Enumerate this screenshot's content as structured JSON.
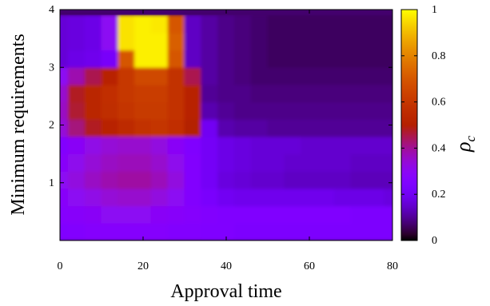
{
  "chart_data": {
    "type": "heatmap",
    "xlabel": "Approval time",
    "ylabel": "Minimum requirements",
    "colorbar_label": "ρ",
    "colorbar_label_sub": "c",
    "xlim": [
      0,
      80
    ],
    "ylim": [
      0,
      4
    ],
    "x_ticks": [
      0,
      20,
      40,
      60,
      80
    ],
    "x_tick_labels": [
      "0",
      "20",
      "40",
      "60",
      "80"
    ],
    "y_ticks": [
      1,
      2,
      3,
      4
    ],
    "y_tick_labels": [
      "1",
      "2",
      "3",
      "4"
    ],
    "color_range": [
      0,
      1
    ],
    "colorbar_ticks": [
      0,
      0.2,
      0.4,
      0.6,
      0.8,
      1
    ],
    "colorbar_tick_labels": [
      "0",
      "0.2",
      "0.4",
      "0.6",
      "0.8",
      "1"
    ],
    "colormap": "gnuplot-pm3d (black-blue-magenta-red-yellow-white)",
    "grid": false,
    "y_centers": [
      0.15,
      0.45,
      0.75,
      1.05,
      1.35,
      1.65,
      1.95,
      2.25,
      2.55,
      2.85,
      3.15,
      3.45,
      3.75
    ],
    "x_centers": [
      0,
      4,
      8,
      12,
      16,
      20,
      24,
      28,
      32,
      36,
      40,
      44,
      48,
      52,
      56,
      60,
      64,
      68,
      72,
      76,
      80
    ],
    "values": [
      [
        0.25,
        0.26,
        0.27,
        0.27,
        0.27,
        0.27,
        0.27,
        0.26,
        0.26,
        0.25,
        0.25,
        0.24,
        0.24,
        0.24,
        0.24,
        0.24,
        0.24,
        0.24,
        0.24,
        0.24,
        0.24
      ],
      [
        0.27,
        0.28,
        0.29,
        0.3,
        0.3,
        0.3,
        0.29,
        0.28,
        0.27,
        0.26,
        0.25,
        0.25,
        0.25,
        0.25,
        0.25,
        0.25,
        0.25,
        0.25,
        0.24,
        0.24,
        0.24
      ],
      [
        0.28,
        0.3,
        0.32,
        0.34,
        0.35,
        0.35,
        0.33,
        0.3,
        0.26,
        0.23,
        0.2,
        0.19,
        0.19,
        0.19,
        0.19,
        0.19,
        0.19,
        0.18,
        0.18,
        0.18,
        0.17
      ],
      [
        0.3,
        0.33,
        0.36,
        0.38,
        0.39,
        0.39,
        0.37,
        0.33,
        0.26,
        0.21,
        0.17,
        0.16,
        0.15,
        0.15,
        0.14,
        0.14,
        0.14,
        0.14,
        0.13,
        0.13,
        0.13
      ],
      [
        0.28,
        0.31,
        0.34,
        0.36,
        0.37,
        0.37,
        0.35,
        0.31,
        0.26,
        0.21,
        0.18,
        0.17,
        0.16,
        0.16,
        0.15,
        0.15,
        0.15,
        0.15,
        0.14,
        0.14,
        0.14
      ],
      [
        0.26,
        0.29,
        0.32,
        0.34,
        0.35,
        0.35,
        0.33,
        0.29,
        0.25,
        0.21,
        0.18,
        0.17,
        0.16,
        0.16,
        0.16,
        0.15,
        0.15,
        0.15,
        0.15,
        0.15,
        0.15
      ],
      [
        0.34,
        0.42,
        0.48,
        0.52,
        0.55,
        0.58,
        0.59,
        0.57,
        0.5,
        0.2,
        0.12,
        0.11,
        0.11,
        0.1,
        0.1,
        0.1,
        0.1,
        0.1,
        0.1,
        0.1,
        0.1
      ],
      [
        0.36,
        0.47,
        0.53,
        0.56,
        0.59,
        0.61,
        0.61,
        0.58,
        0.52,
        0.12,
        0.1,
        0.09,
        0.09,
        0.09,
        0.09,
        0.09,
        0.09,
        0.09,
        0.09,
        0.09,
        0.09
      ],
      [
        0.35,
        0.48,
        0.53,
        0.57,
        0.6,
        0.62,
        0.62,
        0.58,
        0.52,
        0.1,
        0.09,
        0.09,
        0.08,
        0.08,
        0.08,
        0.08,
        0.08,
        0.08,
        0.08,
        0.08,
        0.08
      ],
      [
        0.3,
        0.38,
        0.45,
        0.52,
        0.6,
        0.66,
        0.66,
        0.58,
        0.45,
        0.11,
        0.09,
        0.08,
        0.07,
        0.07,
        0.07,
        0.07,
        0.07,
        0.07,
        0.07,
        0.07,
        0.07
      ],
      [
        0.16,
        0.18,
        0.19,
        0.22,
        0.7,
        0.98,
        0.98,
        0.7,
        0.14,
        0.11,
        0.09,
        0.08,
        0.07,
        0.06,
        0.06,
        0.06,
        0.06,
        0.06,
        0.06,
        0.06,
        0.06
      ],
      [
        0.16,
        0.17,
        0.18,
        0.3,
        0.96,
        0.98,
        0.98,
        0.72,
        0.14,
        0.11,
        0.09,
        0.08,
        0.07,
        0.06,
        0.06,
        0.06,
        0.06,
        0.06,
        0.06,
        0.06,
        0.06
      ],
      [
        0.16,
        0.17,
        0.18,
        0.3,
        0.96,
        0.98,
        0.97,
        0.7,
        0.14,
        0.11,
        0.09,
        0.08,
        0.07,
        0.06,
        0.06,
        0.06,
        0.06,
        0.06,
        0.06,
        0.06,
        0.06
      ]
    ]
  }
}
